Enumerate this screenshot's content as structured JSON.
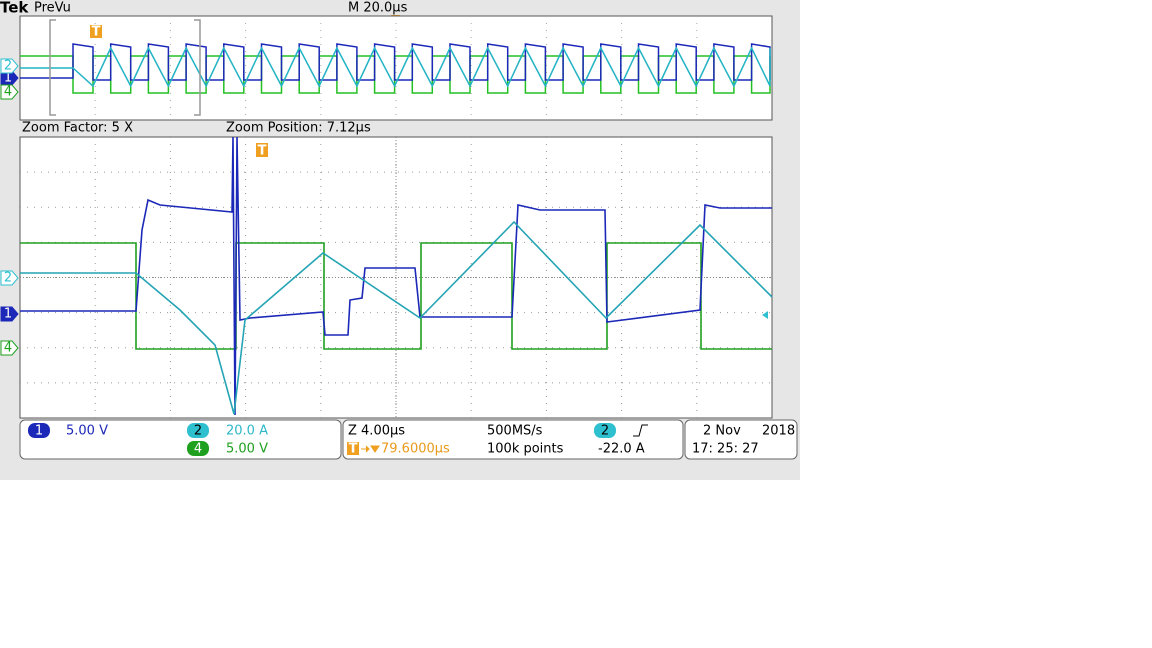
{
  "header": {
    "brand": "Tek",
    "mode": "PreVu",
    "timebase": "M 20.0µs"
  },
  "zoom": {
    "factor": "Zoom Factor: 5 X",
    "position": "Zoom Position: 7.12µs"
  },
  "channels": [
    {
      "number": "1",
      "scale": "5.00 V"
    },
    {
      "number": "2",
      "scale": "20.0 A"
    },
    {
      "number": "4",
      "scale": "5.00 V"
    }
  ],
  "acquisition": {
    "zoom_scale": "Z 4.00µs",
    "trigger_position": "79.6000µs",
    "sample_rate": "500MS/s",
    "record_length": "100k points"
  },
  "trigger": {
    "source": "2",
    "level": "-22.0 A"
  },
  "datetime": {
    "date": "2 Nov",
    "year": "2018",
    "time": "17: 25: 27"
  },
  "markers": {
    "trigger": "T"
  }
}
